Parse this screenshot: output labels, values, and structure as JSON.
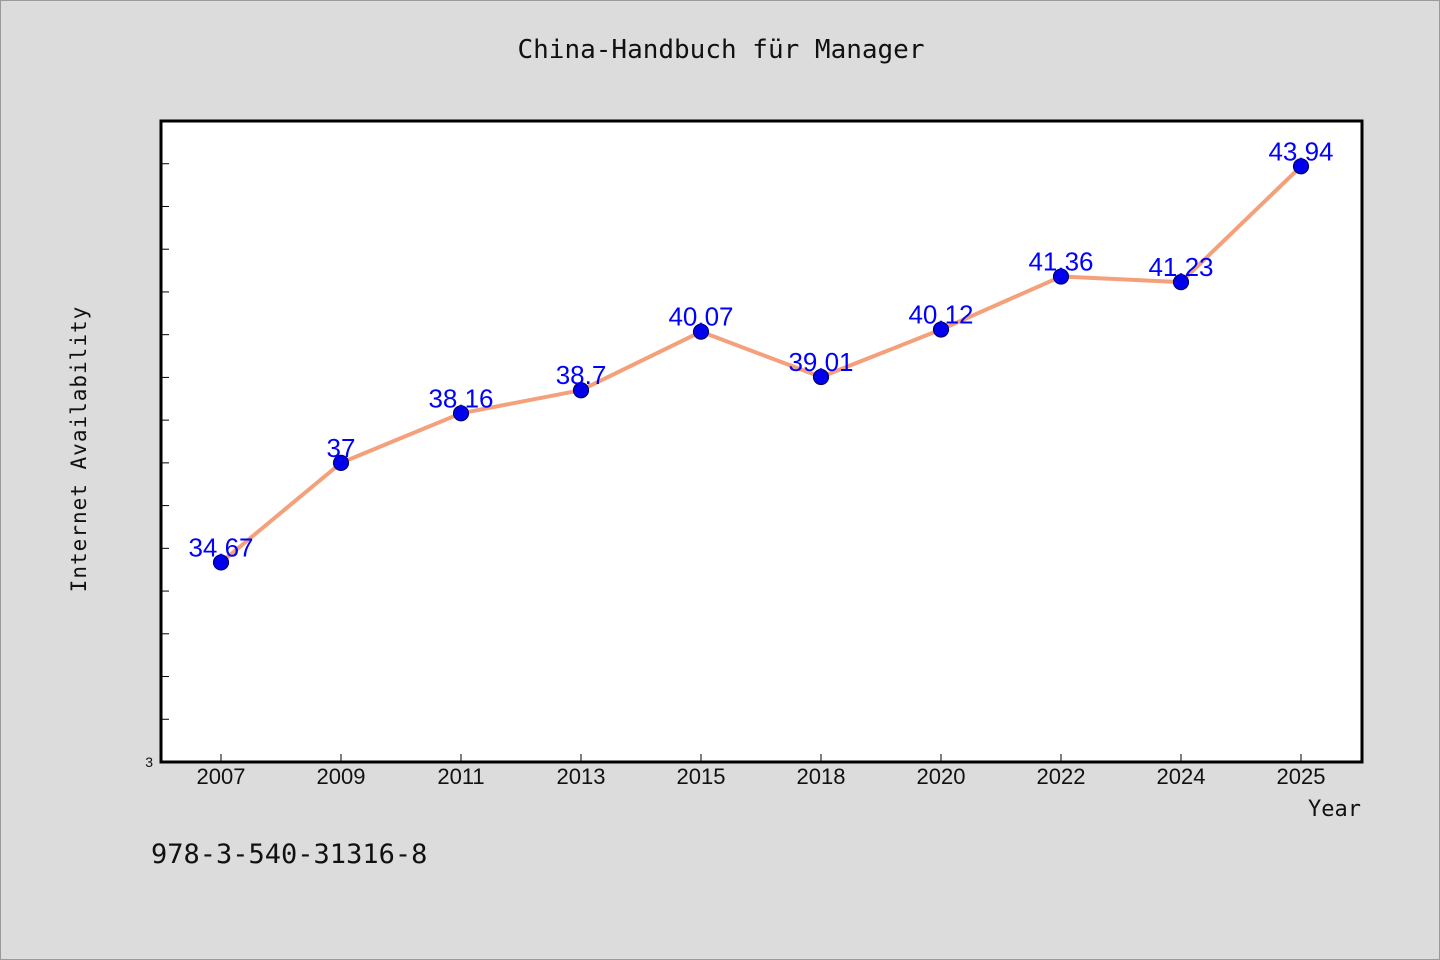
{
  "chart_data": {
    "type": "line",
    "title": "China-Handbuch für Manager",
    "xlabel": "Year",
    "ylabel": "Internet Availability",
    "categories": [
      "2007",
      "2009",
      "2011",
      "2013",
      "2015",
      "2018",
      "2020",
      "2022",
      "2024",
      "2025"
    ],
    "series": [
      {
        "values": [
          34.67,
          37,
          38.16,
          38.7,
          40.07,
          39.01,
          40.12,
          41.36,
          41.23,
          43.94
        ],
        "value_labels": [
          "34.67",
          "37",
          "38.16",
          "38.7",
          "40.07",
          "39.01",
          "40.12",
          "41.36",
          "41.23",
          "43.94"
        ]
      }
    ],
    "y_axis_min_label": "3",
    "ylim": [
      30,
      45
    ],
    "grid": false,
    "legend": "none",
    "colors": {
      "line": "#f4a07a",
      "marker": "#0000ee",
      "marker_edge": "#00006a",
      "data_label": "#0000ff",
      "plot_background": "#ffffff",
      "page_background": "#dcdcdc"
    }
  },
  "footer": {
    "code": "978-3-540-31316-8"
  }
}
